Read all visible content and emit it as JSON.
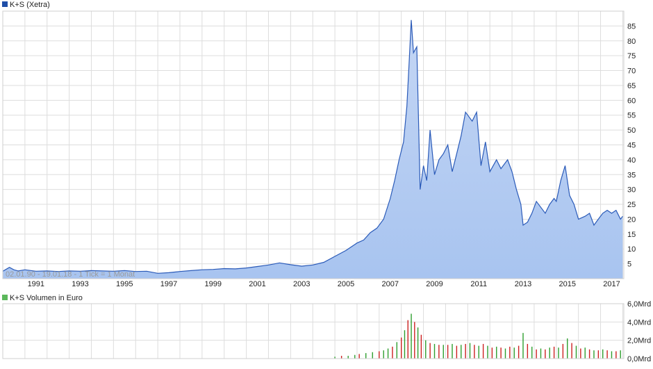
{
  "colors": {
    "price_line": "#2a5ab8",
    "price_fill_top": "#c4d6f4",
    "price_fill_bottom": "#a8c4f0",
    "grid": "#dddddd",
    "frame": "#cfcfcf",
    "axis_text": "#222222",
    "legend_price": "#1f4fa8",
    "legend_volume": "#5cb85c",
    "volume_up": "#2e9e2e",
    "volume_down": "#cc2020",
    "range_text": "#9a9a9a"
  },
  "chart_data": [
    {
      "type": "area",
      "legend": "K+S (Xetra)",
      "range_label": "02.01.90 - 19.01.18 - 1 Tick = 1 Monat",
      "x_ticks": [
        "1991",
        "1993",
        "1995",
        "1997",
        "1999",
        "2001",
        "2003",
        "2005",
        "2007",
        "2009",
        "2011",
        "2013",
        "2015",
        "2017"
      ],
      "y_ticks": [
        5,
        10,
        15,
        20,
        25,
        30,
        35,
        40,
        45,
        50,
        55,
        60,
        65,
        70,
        75,
        80,
        85
      ],
      "xlim": [
        1990.0,
        2018.05
      ],
      "ylim": [
        0,
        90
      ],
      "grid": true,
      "y_axis_side": "right",
      "series": [
        {
          "name": "K+S (Xetra)",
          "x": [
            1990.0,
            1990.3,
            1990.5,
            1990.7,
            1991.0,
            1991.5,
            1992.0,
            1992.5,
            1993.0,
            1993.5,
            1994.0,
            1994.5,
            1995.0,
            1995.5,
            1996.0,
            1996.5,
            1997.0,
            1997.5,
            1998.0,
            1998.5,
            1999.0,
            1999.5,
            2000.0,
            2000.5,
            2001.0,
            2001.5,
            2002.0,
            2002.5,
            2003.0,
            2003.5,
            2004.0,
            2004.5,
            2005.0,
            2005.5,
            2006.0,
            2006.3,
            2006.6,
            2006.9,
            2007.2,
            2007.5,
            2007.7,
            2007.9,
            2008.1,
            2008.25,
            2008.35,
            2008.45,
            2008.55,
            2008.7,
            2008.85,
            2009.0,
            2009.15,
            2009.3,
            2009.5,
            2009.7,
            2009.9,
            2010.1,
            2010.3,
            2010.5,
            2010.7,
            2010.9,
            2011.0,
            2011.2,
            2011.4,
            2011.6,
            2011.8,
            2012.0,
            2012.3,
            2012.5,
            2012.8,
            2013.0,
            2013.2,
            2013.4,
            2013.5,
            2013.7,
            2013.9,
            2014.1,
            2014.3,
            2014.5,
            2014.7,
            2014.9,
            2015.0,
            2015.2,
            2015.4,
            2015.6,
            2015.8,
            2016.0,
            2016.3,
            2016.5,
            2016.7,
            2016.9,
            2017.1,
            2017.3,
            2017.5,
            2017.7,
            2017.9,
            2018.0
          ],
          "y": [
            2.5,
            3.8,
            3.0,
            2.6,
            3.0,
            2.5,
            2.6,
            2.4,
            2.6,
            2.5,
            2.7,
            2.6,
            2.5,
            2.7,
            2.4,
            2.5,
            1.8,
            2.0,
            2.4,
            2.7,
            3.0,
            3.1,
            3.4,
            3.3,
            3.6,
            4.1,
            4.6,
            5.3,
            4.7,
            4.2,
            4.6,
            5.5,
            7.5,
            9.5,
            12.0,
            13.0,
            15.5,
            17.0,
            20.0,
            27.0,
            33.0,
            40.0,
            46.0,
            58.0,
            72.0,
            87.0,
            76.0,
            78.0,
            30.0,
            38.0,
            33.0,
            50.0,
            35.0,
            40.0,
            42.0,
            45.0,
            36.0,
            42.0,
            48.0,
            56.0,
            55.0,
            53.0,
            56.0,
            38.0,
            46.0,
            36.0,
            40.0,
            37.0,
            40.0,
            36.0,
            30.0,
            25.0,
            18.0,
            19.0,
            22.0,
            26.0,
            24.0,
            22.0,
            25.0,
            27.0,
            26.0,
            33.0,
            38.0,
            28.0,
            25.0,
            20.0,
            21.0,
            22.0,
            18.0,
            20.0,
            22.0,
            23.0,
            22.0,
            23.0,
            20.0,
            21.0
          ]
        }
      ]
    },
    {
      "type": "bar",
      "legend": "K+S Volumen in Euro",
      "y_ticks": [
        "0,0Mrd",
        "2,0Mrd",
        "4,0Mrd",
        "6,0Mrd"
      ],
      "ylim": [
        0,
        6.0
      ],
      "unit": "Mrd Euro",
      "grid": true,
      "y_axis_side": "right",
      "series": [
        {
          "name": "K+S Volumen in Euro",
          "x": [
            2005.0,
            2005.3,
            2005.6,
            2005.9,
            2006.1,
            2006.4,
            2006.7,
            2007.0,
            2007.2,
            2007.4,
            2007.6,
            2007.8,
            2008.0,
            2008.15,
            2008.3,
            2008.45,
            2008.6,
            2008.75,
            2008.9,
            2009.1,
            2009.3,
            2009.5,
            2009.7,
            2009.9,
            2010.1,
            2010.3,
            2010.5,
            2010.7,
            2010.9,
            2011.1,
            2011.3,
            2011.5,
            2011.7,
            2011.9,
            2012.1,
            2012.3,
            2012.5,
            2012.7,
            2012.9,
            2013.1,
            2013.3,
            2013.5,
            2013.7,
            2013.9,
            2014.1,
            2014.3,
            2014.5,
            2014.7,
            2014.9,
            2015.1,
            2015.3,
            2015.5,
            2015.7,
            2015.9,
            2016.1,
            2016.3,
            2016.5,
            2016.7,
            2016.9,
            2017.1,
            2017.3,
            2017.5,
            2017.7,
            2017.9
          ],
          "values": [
            0.2,
            0.3,
            0.3,
            0.4,
            0.5,
            0.6,
            0.7,
            0.8,
            0.9,
            1.1,
            1.3,
            1.8,
            2.3,
            3.1,
            4.2,
            4.9,
            4.0,
            3.4,
            2.6,
            2.0,
            1.7,
            1.6,
            1.5,
            1.5,
            1.5,
            1.6,
            1.4,
            1.5,
            1.6,
            1.7,
            1.5,
            1.4,
            1.6,
            1.4,
            1.2,
            1.3,
            1.2,
            1.1,
            1.3,
            1.2,
            1.4,
            2.8,
            1.6,
            1.3,
            1.0,
            1.1,
            1.0,
            1.2,
            1.3,
            1.2,
            1.6,
            2.2,
            1.7,
            1.4,
            1.1,
            1.2,
            1.0,
            0.9,
            0.9,
            1.0,
            0.9,
            0.8,
            0.8,
            0.9
          ],
          "direction": [
            "up",
            "down",
            "up",
            "up",
            "down",
            "up",
            "up",
            "down",
            "up",
            "up",
            "down",
            "up",
            "down",
            "up",
            "down",
            "up",
            "down",
            "up",
            "down",
            "up",
            "down",
            "up",
            "down",
            "up",
            "down",
            "up",
            "down",
            "up",
            "down",
            "up",
            "down",
            "up",
            "down",
            "up",
            "down",
            "up",
            "down",
            "up",
            "down",
            "up",
            "down",
            "up",
            "down",
            "up",
            "down",
            "up",
            "down",
            "up",
            "down",
            "up",
            "down",
            "up",
            "down",
            "up",
            "down",
            "up",
            "down",
            "up",
            "down",
            "up",
            "down",
            "up",
            "down",
            "up"
          ]
        }
      ]
    }
  ]
}
